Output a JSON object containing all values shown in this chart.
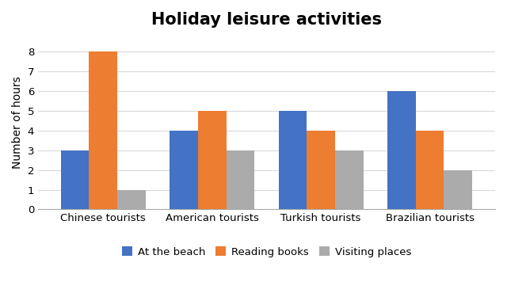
{
  "title": "Holiday leisure activities",
  "ylabel": "Number of hours",
  "categories": [
    "Chinese tourists",
    "American tourists",
    "Turkish tourists",
    "Brazilian tourists"
  ],
  "series": [
    {
      "label": "At the beach",
      "values": [
        3,
        4,
        5,
        6
      ],
      "color": "#4472C4"
    },
    {
      "label": "Reading books",
      "values": [
        8,
        5,
        4,
        4
      ],
      "color": "#ED7D31"
    },
    {
      "label": "Visiting places",
      "values": [
        1,
        3,
        3,
        2
      ],
      "color": "#ABABAB"
    }
  ],
  "ylim": [
    0,
    8.8
  ],
  "yticks": [
    0,
    1,
    2,
    3,
    4,
    5,
    6,
    7,
    8
  ],
  "title_fontsize": 15,
  "axis_label_fontsize": 10,
  "tick_fontsize": 9.5,
  "legend_fontsize": 9.5,
  "bar_width": 0.26,
  "background_color": "#FFFFFF",
  "grid_color": "#D9D9D9"
}
